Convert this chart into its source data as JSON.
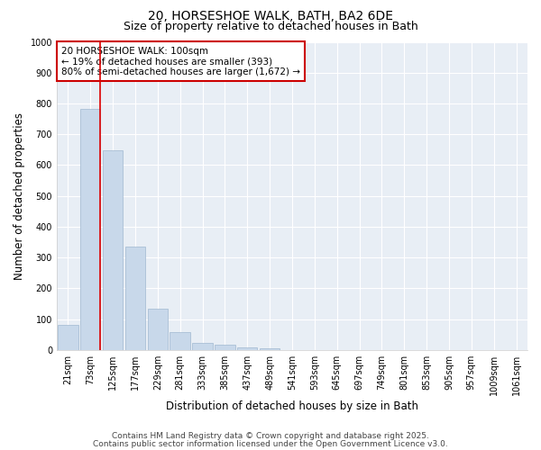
{
  "title_line1": "20, HORSESHOE WALK, BATH, BA2 6DE",
  "title_line2": "Size of property relative to detached houses in Bath",
  "xlabel": "Distribution of detached houses by size in Bath",
  "ylabel": "Number of detached properties",
  "categories": [
    "21sqm",
    "73sqm",
    "125sqm",
    "177sqm",
    "229sqm",
    "281sqm",
    "333sqm",
    "385sqm",
    "437sqm",
    "489sqm",
    "541sqm",
    "593sqm",
    "645sqm",
    "697sqm",
    "749sqm",
    "801sqm",
    "853sqm",
    "905sqm",
    "957sqm",
    "1009sqm",
    "1061sqm"
  ],
  "bar_heights": [
    82,
    783,
    648,
    335,
    133,
    57,
    22,
    18,
    8,
    5,
    0,
    0,
    0,
    0,
    0,
    0,
    0,
    0,
    0,
    0,
    0
  ],
  "bar_color": "#c8d8ea",
  "bar_edge_color": "#a0b8d0",
  "vline_color": "#dd0000",
  "ylim": [
    0,
    1000
  ],
  "yticks": [
    0,
    100,
    200,
    300,
    400,
    500,
    600,
    700,
    800,
    900,
    1000
  ],
  "annotation_box_text": "20 HORSESHOE WALK: 100sqm\n← 19% of detached houses are smaller (393)\n80% of semi-detached houses are larger (1,672) →",
  "annotation_box_color": "#cc0000",
  "background_color": "#ffffff",
  "plot_bg_color": "#e8eef5",
  "grid_color": "#ffffff",
  "footnote_line1": "Contains HM Land Registry data © Crown copyright and database right 2025.",
  "footnote_line2": "Contains public sector information licensed under the Open Government Licence v3.0.",
  "title_fontsize": 10,
  "subtitle_fontsize": 9,
  "axis_label_fontsize": 8.5,
  "tick_fontsize": 7,
  "annotation_fontsize": 7.5,
  "footnote_fontsize": 6.5
}
